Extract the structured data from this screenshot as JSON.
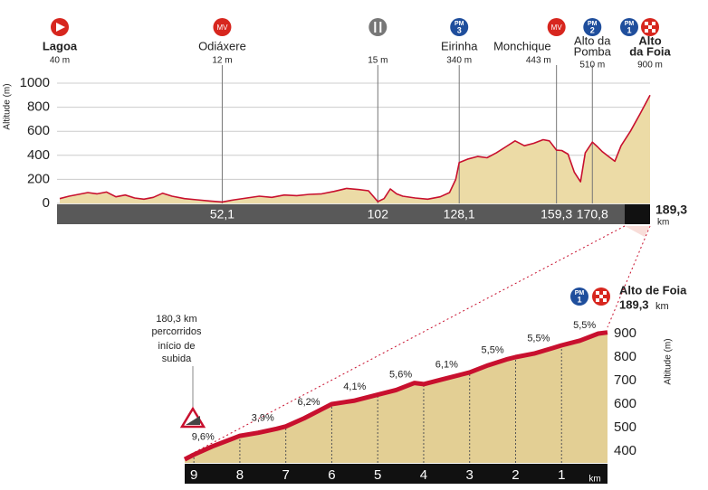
{
  "chart_data": [
    {
      "type": "area",
      "y_label": "Altitude (m)",
      "xlim": [
        0,
        189.3
      ],
      "ylim": [
        0,
        1000
      ],
      "yticks": [
        0,
        200,
        400,
        600,
        800,
        1000
      ],
      "grid": true,
      "xticks": [
        {
          "value": 52.1,
          "label": "52,1"
        },
        102,
        {
          "value": 128.1,
          "label": "128,1"
        },
        {
          "value": 159.3,
          "label": "159,3"
        },
        {
          "value": 170.8,
          "label": "170,8"
        }
      ],
      "total": {
        "value": 189.3,
        "label": "189,3"
      },
      "x_unit": "km",
      "color": "#c8102e",
      "fill": "#ecdba6",
      "x": [
        0,
        3,
        6,
        9,
        12,
        15,
        18,
        21,
        24,
        27,
        30,
        33,
        36,
        40,
        44,
        48,
        52.1,
        56,
        60,
        64,
        68,
        72,
        76,
        80,
        84,
        88,
        92,
        96,
        99,
        102,
        104,
        106,
        108,
        110,
        114,
        118,
        122,
        125,
        127,
        128.1,
        131,
        134,
        137,
        140,
        143,
        146,
        149,
        152,
        155,
        157,
        159.3,
        161,
        163,
        165,
        167,
        168.5,
        170.8,
        172.5,
        174,
        176,
        178,
        180,
        183,
        186,
        189.3
      ],
      "values": [
        40,
        60,
        75,
        90,
        80,
        95,
        55,
        70,
        45,
        35,
        50,
        85,
        60,
        40,
        30,
        20,
        12,
        30,
        45,
        60,
        50,
        70,
        65,
        75,
        80,
        100,
        125,
        115,
        105,
        15,
        40,
        120,
        80,
        60,
        45,
        35,
        55,
        90,
        200,
        340,
        370,
        390,
        380,
        420,
        470,
        520,
        480,
        500,
        530,
        520,
        443,
        440,
        410,
        260,
        180,
        420,
        510,
        470,
        430,
        390,
        350,
        480,
        600,
        740,
        900
      ],
      "waypoints": [
        {
          "name": [
            "Lagoa"
          ],
          "alt_label": "40 m",
          "km": 0,
          "bold": true,
          "badges": [
            {
              "kind": "start"
            }
          ]
        },
        {
          "name": [
            "Odiáxere"
          ],
          "alt_label": "12 m",
          "km": 52.1,
          "badges": [
            {
              "kind": "mv",
              "label": "MV"
            }
          ]
        },
        {
          "alt_label": "15 m",
          "km": 102,
          "badges": [
            {
              "kind": "feed"
            }
          ]
        },
        {
          "name": [
            "Eirinha"
          ],
          "alt_label": "340 m",
          "km": 128.1,
          "badges": [
            {
              "kind": "pm",
              "label": "PM",
              "cat": "3"
            }
          ]
        },
        {
          "name": [
            "Monchique"
          ],
          "alt_label": "443 m",
          "km": 159.3,
          "align": "end",
          "badges": [
            {
              "kind": "mv",
              "label": "MV"
            }
          ]
        },
        {
          "name": [
            "Alto da",
            "Pomba"
          ],
          "alt_label": "510 m",
          "km": 170.8,
          "badges": [
            {
              "kind": "pm",
              "label": "PM",
              "cat": "2"
            }
          ]
        },
        {
          "name": [
            "Alto",
            "da Foia"
          ],
          "alt_label": "900 m",
          "km": 189.3,
          "bold": true,
          "badges": [
            {
              "kind": "pm",
              "label": "PM",
              "cat": "1"
            },
            {
              "kind": "finish"
            }
          ]
        }
      ]
    },
    {
      "type": "area",
      "y_label": "Altitude (m)",
      "xlim": [
        9.2,
        0
      ],
      "ylim": [
        350,
        950
      ],
      "yticks": [
        400,
        500,
        600,
        700,
        800,
        900
      ],
      "xticks": [
        9,
        8,
        7,
        6,
        5,
        4,
        3,
        2,
        1
      ],
      "x_unit": "km",
      "color": "#c8102e",
      "fill": "#e3cf94",
      "x": [
        9.2,
        9,
        8.6,
        8.2,
        8,
        7.6,
        7.2,
        7,
        6.6,
        6.2,
        6,
        5.5,
        5,
        4.6,
        4.2,
        4,
        3.6,
        3.2,
        3,
        2.6,
        2.2,
        2,
        1.6,
        1.2,
        1,
        0.6,
        0.2,
        0
      ],
      "values": [
        365,
        385,
        420,
        450,
        465,
        478,
        495,
        505,
        540,
        580,
        600,
        615,
        640,
        660,
        690,
        685,
        705,
        725,
        735,
        765,
        790,
        800,
        815,
        838,
        850,
        870,
        900,
        905
      ],
      "gradient_km": [
        8.8,
        7.5,
        6.5,
        5.5,
        4.5,
        3.5,
        2.5,
        1.5,
        0.5
      ],
      "gradient_labels": [
        "9,6%",
        "3,9%",
        "6,2%",
        "4,1%",
        "5,6%",
        "6,1%",
        "5,5%",
        "5,5%",
        "5,5%"
      ],
      "start_note": [
        "180,3 km",
        "percorridos",
        "início de",
        "subida"
      ],
      "summit": {
        "name": "Alto de Foia",
        "km_label": "189,3",
        "unit": "km",
        "badges": [
          {
            "kind": "pm",
            "label": "PM",
            "cat": "1"
          },
          {
            "kind": "finish"
          }
        ]
      }
    }
  ]
}
